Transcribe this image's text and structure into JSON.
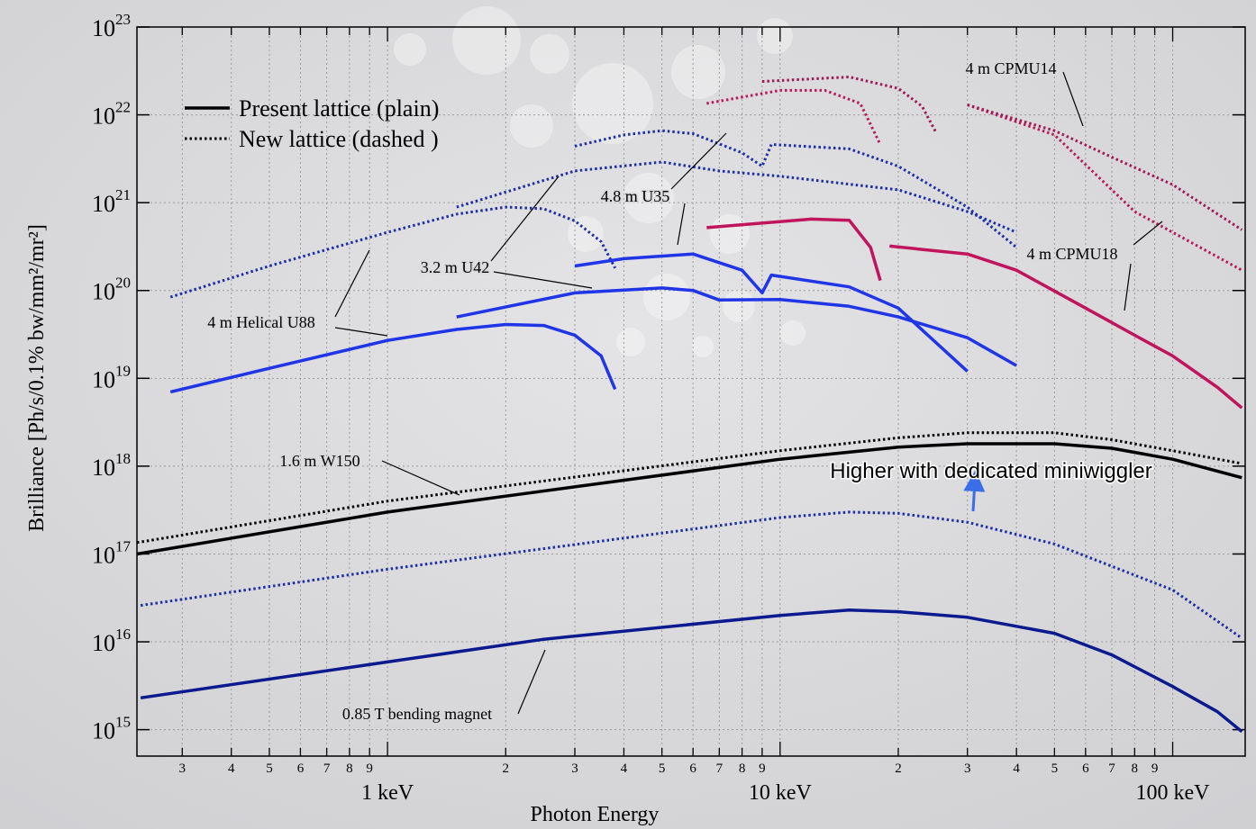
{
  "chart_data": {
    "type": "line",
    "xlabel": "Photon Energy",
    "ylabel": "Brilliance [Ph/s/0.1% bw/mm²/mr²]",
    "xlog": true,
    "ylog": true,
    "grid": true,
    "xlim": [
      0.23,
      153
    ],
    "ylim": [
      500000000000000.0,
      1e+23
    ],
    "xticks": [
      {
        "value": 0.3,
        "label": "3"
      },
      {
        "value": 0.4,
        "label": "4"
      },
      {
        "value": 0.5,
        "label": "5"
      },
      {
        "value": 0.6,
        "label": "6"
      },
      {
        "value": 0.7,
        "label": "7"
      },
      {
        "value": 0.8,
        "label": "8"
      },
      {
        "value": 0.9,
        "label": "9"
      },
      {
        "value": 1,
        "label": "1 keV"
      },
      2,
      3,
      4,
      5,
      6,
      7,
      8,
      9,
      {
        "value": 10,
        "label": "10 keV"
      },
      {
        "value": 20,
        "label": "2"
      },
      {
        "value": 30,
        "label": "3"
      },
      {
        "value": 40,
        "label": "4"
      },
      {
        "value": 50,
        "label": "5"
      },
      {
        "value": 60,
        "label": "6"
      },
      {
        "value": 70,
        "label": "7"
      },
      {
        "value": 80,
        "label": "8"
      },
      {
        "value": 90,
        "label": "9"
      },
      {
        "value": 100,
        "label": "100 keV"
      }
    ],
    "yticks": [
      {
        "value": 1000000000000000.0,
        "label": "10",
        "sup": "15"
      },
      {
        "value": 1e+16,
        "label": "10",
        "sup": "16"
      },
      {
        "value": 1e+17,
        "label": "10",
        "sup": "17"
      },
      {
        "value": 1e+18,
        "label": "10",
        "sup": "18"
      },
      {
        "value": 1e+19,
        "label": "10",
        "sup": "19"
      },
      {
        "value": 1e+20,
        "label": "10",
        "sup": "20"
      },
      {
        "value": 1e+21,
        "label": "10",
        "sup": "21"
      },
      {
        "value": 1e+22,
        "label": "10",
        "sup": "22"
      },
      {
        "value": 1e+23,
        "label": "10",
        "sup": "23"
      }
    ],
    "legend": [
      {
        "label": "Present lattice (plain)",
        "color": "#000000",
        "dash": "solid"
      },
      {
        "label": "New lattice (dashed )",
        "color": "#000000",
        "dash": "dotted"
      }
    ],
    "series": [
      {
        "color": "#0b1a8f",
        "dash": "solid",
        "x": [
          0.235,
          1,
          2.5,
          10,
          15,
          20,
          30,
          50,
          70,
          100,
          130,
          150
        ],
        "values": [
          2300000000000000.0,
          5900000000000000.0,
          1.07e+16,
          2e+16,
          2.3e+16,
          2.2e+16,
          1.9e+16,
          1.25e+16,
          7100000000000000.0,
          3100000000000000.0,
          1600000000000000.0,
          950000000000000.0
        ]
      },
      {
        "color": "#1c2ea8",
        "dash": "dotted",
        "x": [
          0.235,
          1,
          10,
          15,
          20,
          30,
          50,
          100,
          150
        ],
        "values": [
          2.6e+16,
          6.7e+16,
          2.6e+17,
          3e+17,
          2.9e+17,
          2.3e+17,
          1.3e+17,
          3.9e+16,
          1.1e+16
        ]
      },
      {
        "color": "#000000",
        "dash": "solid",
        "x": [
          0.23,
          1,
          10,
          20,
          30,
          50,
          70,
          100,
          150
        ],
        "values": [
          1e+17,
          3e+17,
          1.2e+18,
          1.65e+18,
          1.8e+18,
          1.8e+18,
          1.6e+18,
          1.2e+18,
          7.4e+17
        ]
      },
      {
        "color": "#000000",
        "dash": "dotted",
        "x": [
          0.23,
          1,
          10,
          20,
          30,
          50,
          70,
          100,
          150
        ],
        "values": [
          1.35e+17,
          4e+17,
          1.5e+18,
          2.1e+18,
          2.4e+18,
          2.4e+18,
          2e+18,
          1.5e+18,
          1.07e+18
        ]
      },
      {
        "color": "#1f35e6",
        "dash": "solid",
        "x": [
          0.28,
          0.5,
          1,
          1.5,
          2,
          2.5,
          3,
          3.5,
          3.8
        ],
        "values": [
          7e+18,
          1.3e+19,
          2.7e+19,
          3.6e+19,
          4.1e+19,
          4e+19,
          3.1e+19,
          1.8e+19,
          7.5e+18
        ]
      },
      {
        "color": "#1c2ea8",
        "dash": "dotted",
        "x": [
          0.28,
          0.5,
          1,
          1.5,
          2,
          2.5,
          3,
          3.5,
          3.8
        ],
        "values": [
          8.4e+19,
          1.9e+20,
          4.6e+20,
          7.4e+20,
          8.9e+20,
          8.5e+20,
          6.2e+20,
          3.6e+20,
          1.8e+20
        ]
      },
      {
        "color": "#1f35e6",
        "dash": "solid",
        "x": [
          1.5,
          3,
          5,
          6,
          7,
          10,
          15,
          20,
          30,
          40
        ],
        "values": [
          5e+19,
          9.4e+19,
          1.07e+20,
          1e+20,
          7.8e+19,
          7.9e+19,
          6.6e+19,
          5e+19,
          2.9e+19,
          1.4e+19
        ]
      },
      {
        "color": "#1c2ea8",
        "dash": "dotted",
        "x": [
          1.5,
          3,
          5,
          7,
          10,
          20,
          30,
          40
        ],
        "values": [
          8.9e+20,
          2.3e+21,
          2.9e+21,
          2.3e+21,
          2e+21,
          1.4e+21,
          7.9e+20,
          4.6e+20
        ]
      },
      {
        "color": "#1f35e6",
        "dash": "solid",
        "x": [
          3,
          4,
          6,
          8,
          9,
          9.5,
          15,
          20,
          30
        ],
        "values": [
          1.9e+20,
          2.3e+20,
          2.6e+20,
          1.7e+20,
          9.4e+19,
          1.5e+20,
          1.1e+20,
          6.3e+19,
          1.2e+19
        ]
      },
      {
        "color": "#1c2ea8",
        "dash": "dotted",
        "x": [
          3,
          4,
          5,
          6,
          8,
          9,
          9.5,
          15,
          20,
          30,
          40
        ],
        "values": [
          4.4e+21,
          5.9e+21,
          6.6e+21,
          6.1e+21,
          3.7e+21,
          2.6e+21,
          4.6e+21,
          4.1e+21,
          2.6e+21,
          8.9e+20,
          3.1e+20
        ]
      },
      {
        "color": "#c0155c",
        "dash": "solid",
        "x": [
          6.5,
          12,
          15,
          17,
          18,
          18.5,
          19,
          30,
          40,
          60,
          80,
          100,
          130,
          150
        ],
        "values": [
          5.2e+20,
          6.5e+20,
          6.3e+20,
          3.1e+20,
          1.3e+20,
          null,
          3.2e+20,
          2.6e+20,
          1.7e+20,
          6.3e+19,
          3.1e+19,
          1.8e+19,
          7.9e+18,
          4.6e+18
        ]
      },
      {
        "color": "#b81a5a",
        "dash": "dotted",
        "x": [
          6.5,
          10,
          13,
          16,
          18,
          24,
          30,
          50,
          80,
          100,
          150
        ],
        "values": [
          1.35e+22,
          1.9e+22,
          1.9e+22,
          1.35e+22,
          4.6e+21,
          null,
          1.3e+22,
          5.9e+21,
          7.9e+20,
          4.6e+20,
          1.7e+20
        ]
      },
      {
        "color": "#9e1b55",
        "dash": "dotted",
        "x": [
          9,
          15,
          20,
          23,
          25,
          28,
          30,
          50,
          70,
          100,
          150
        ],
        "values": [
          2.4e+22,
          2.7e+22,
          2e+22,
          1.25e+22,
          6.2e+21,
          null,
          1.3e+22,
          6.6e+21,
          3.3e+21,
          1.6e+21,
          4.9e+20
        ]
      }
    ],
    "annotations": [
      {
        "text": "4 m CPMU14"
      },
      {
        "text": "4.8 m U35"
      },
      {
        "text": "4 m CPMU18"
      },
      {
        "text": "3.2 m U42"
      },
      {
        "text": "4 m Helical U88"
      },
      {
        "text": "1.6 m W150"
      },
      {
        "text": "0.85 T bending magnet"
      }
    ],
    "note": "Higher with dedicated miniwiggler"
  }
}
